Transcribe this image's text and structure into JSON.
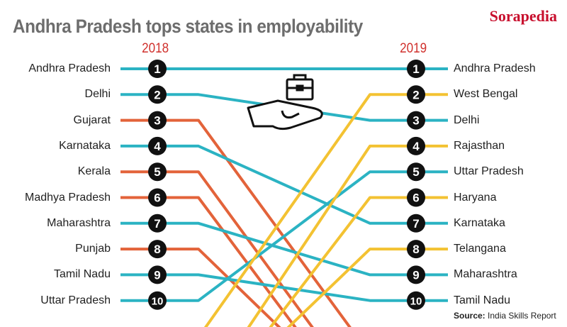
{
  "header": {
    "title": "Andhra Pradesh tops states in employability",
    "brand": "Sorapedia"
  },
  "source": {
    "label": "Source:",
    "text": "India Skills Report"
  },
  "colors": {
    "continuing": "#2bb3c3",
    "dropped": "#e3633a",
    "new": "#f3c232",
    "badge": "#111111"
  },
  "icons": [
    "briefcase-icon",
    "open-hand-icon"
  ],
  "chart_data": {
    "type": "bump",
    "title": "Andhra Pradesh tops states in employability",
    "columns": [
      "2018",
      "2019"
    ],
    "ranks": [
      1,
      2,
      3,
      4,
      5,
      6,
      7,
      8,
      9,
      10
    ],
    "left_labels": [
      "Andhra Pradesh",
      "Delhi",
      "Gujarat",
      "Karnataka",
      "Kerala",
      "Madhya Pradesh",
      "Maharashtra",
      "Punjab",
      "Tamil Nadu",
      "Uttar Pradesh"
    ],
    "right_labels": [
      "Andhra Pradesh",
      "West Bengal",
      "Delhi",
      "Rajasthan",
      "Uttar Pradesh",
      "Haryana",
      "Karnataka",
      "Telangana",
      "Maharashtra",
      "Tamil Nadu"
    ],
    "series": [
      {
        "name": "Andhra Pradesh",
        "rank_2018": 1,
        "rank_2019": 1
      },
      {
        "name": "Delhi",
        "rank_2018": 2,
        "rank_2019": 3
      },
      {
        "name": "Gujarat",
        "rank_2018": 3,
        "rank_2019": null
      },
      {
        "name": "Karnataka",
        "rank_2018": 4,
        "rank_2019": 7
      },
      {
        "name": "Kerala",
        "rank_2018": 5,
        "rank_2019": null
      },
      {
        "name": "Madhya Pradesh",
        "rank_2018": 6,
        "rank_2019": null
      },
      {
        "name": "Maharashtra",
        "rank_2018": 7,
        "rank_2019": 9
      },
      {
        "name": "Punjab",
        "rank_2018": 8,
        "rank_2019": null
      },
      {
        "name": "Tamil Nadu",
        "rank_2018": 9,
        "rank_2019": 10
      },
      {
        "name": "Uttar Pradesh",
        "rank_2018": 10,
        "rank_2019": 5
      },
      {
        "name": "West Bengal",
        "rank_2018": null,
        "rank_2019": 2
      },
      {
        "name": "Rajasthan",
        "rank_2018": null,
        "rank_2019": 4
      },
      {
        "name": "Haryana",
        "rank_2018": null,
        "rank_2019": 6
      },
      {
        "name": "Telangana",
        "rank_2018": null,
        "rank_2019": 8
      }
    ]
  }
}
